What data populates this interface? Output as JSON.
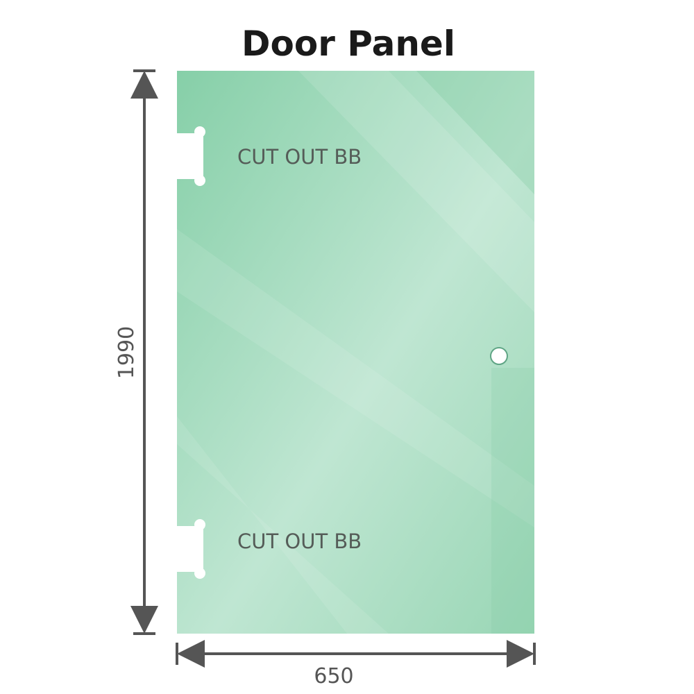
{
  "title": "Door Panel",
  "cutout_labels": [
    "CUT OUT BB",
    "CUT OUT BB"
  ],
  "dimensions": {
    "height": "1990",
    "width": "650"
  },
  "colors": {
    "glass": "#8fd1ad",
    "glass_light": "#bde6d0",
    "dimension_line": "#555555"
  }
}
